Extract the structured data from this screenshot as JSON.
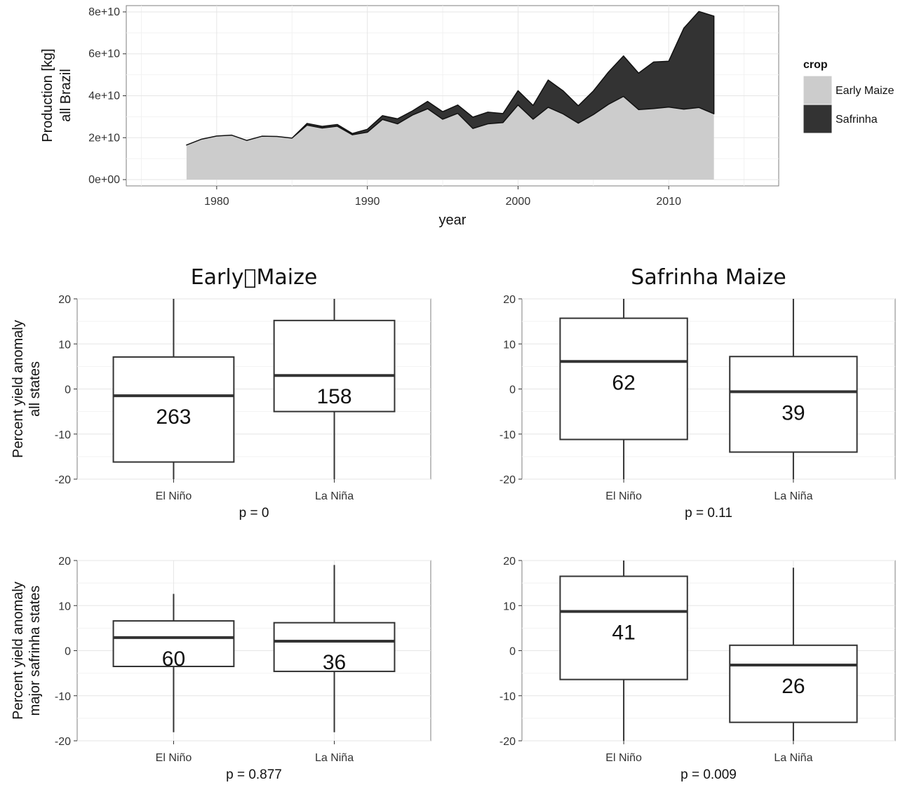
{
  "chart_data": [
    {
      "id": "production",
      "type": "area",
      "stacked": true,
      "xlabel": "year",
      "ylabel_lines": [
        "Production [kg]",
        "all Brazil"
      ],
      "xlim": [
        1974,
        2017.3
      ],
      "ylim": [
        -3000000000.0,
        83000000000.0
      ],
      "x_ticks": [
        1980,
        1990,
        2000,
        2010
      ],
      "x_tick_labels": [
        "1980",
        "1990",
        "2000",
        "2010"
      ],
      "y_ticks": [
        0,
        20000000000,
        40000000000,
        60000000000,
        80000000000
      ],
      "y_tick_labels": [
        "0e+00",
        "2e+10",
        "4e+10",
        "6e+10",
        "8e+10"
      ],
      "grid": true,
      "legend": {
        "title": "crop",
        "position": "right",
        "labels": [
          "Early Maize",
          "Safrinha"
        ]
      },
      "x": [
        1978,
        1979,
        1980,
        1981,
        1982,
        1983,
        1984,
        1985,
        1986,
        1987,
        1988,
        1989,
        1990,
        1991,
        1992,
        1993,
        1994,
        1995,
        1996,
        1997,
        1998,
        1999,
        2000,
        2001,
        2002,
        2003,
        2004,
        2005,
        2006,
        2007,
        2008,
        2009,
        2010,
        2011,
        2012,
        2013
      ],
      "series": [
        {
          "name": "Early Maize",
          "color": "#cccccc",
          "values": [
            16500000000.0,
            19300000000.0,
            20800000000.0,
            21200000000.0,
            18700000000.0,
            20700000000.0,
            20600000000.0,
            19800000000.0,
            26000000000.0,
            24600000000.0,
            25500000000.0,
            21400000000.0,
            22600000000.0,
            28700000000.0,
            26600000000.0,
            30800000000.0,
            33800000000.0,
            28800000000.0,
            31600000000.0,
            24400000000.0,
            26600000000.0,
            27200000000.0,
            35600000000.0,
            28800000000.0,
            34500000000.0,
            31300000000.0,
            26900000000.0,
            31000000000.0,
            35900000000.0,
            39700000000.0,
            33400000000.0,
            33900000000.0,
            34600000000.0,
            33600000000.0,
            34400000000.0,
            31400000000.0
          ]
        },
        {
          "name": "Safrinha",
          "color": "#333333",
          "values": [
            0,
            0,
            0,
            0,
            0,
            0,
            0,
            0,
            800000000.0,
            800000000.0,
            800000000.0,
            600000000.0,
            1400000000.0,
            1800000000.0,
            2400000000.0,
            2000000000.0,
            3500000000.0,
            3600000000.0,
            4000000000.0,
            5400000000.0,
            5600000000.0,
            4300000000.0,
            6800000000.0,
            6600000000.0,
            13000000000.0,
            11000000000.0,
            8300000000.0,
            11300000000.0,
            15400000000.0,
            19300000000.0,
            17400000000.0,
            22200000000.0,
            21900000000.0,
            38600000000.0,
            45800000000.0,
            46600000000.0
          ]
        }
      ]
    },
    {
      "id": "early-all",
      "type": "box",
      "title": "Early\u0000Maize",
      "ylabel_lines": [
        "Percent yield anomaly",
        "all states"
      ],
      "ylim": [
        -20,
        20
      ],
      "y_ticks": [
        -20,
        -10,
        0,
        10,
        20
      ],
      "y_tick_labels": [
        "-20",
        "-10",
        "0",
        "10",
        "20"
      ],
      "categories": [
        "El Niño",
        "La Niña"
      ],
      "p_label": "p = 0",
      "boxes": [
        {
          "category": "El Niño",
          "q1": -16.2,
          "median": -1.5,
          "q3": 7.1,
          "whisker_low": -20,
          "whisker_high": 20,
          "n_label": "263"
        },
        {
          "category": "La Niña",
          "q1": -5.0,
          "median": 3.0,
          "q3": 15.2,
          "whisker_low": -20,
          "whisker_high": 20,
          "n_label": "158"
        }
      ]
    },
    {
      "id": "safrinha-all",
      "type": "box",
      "title": "Safrinha Maize",
      "ylabel_lines": [],
      "ylim": [
        -20,
        20
      ],
      "y_ticks": [
        -20,
        -10,
        0,
        10,
        20
      ],
      "y_tick_labels": [
        "-20",
        "-10",
        "0",
        "10",
        "20"
      ],
      "categories": [
        "El Niño",
        "La Niña"
      ],
      "p_label": "p = 0.11",
      "boxes": [
        {
          "category": "El Niño",
          "q1": -11.2,
          "median": 6.1,
          "q3": 15.7,
          "whisker_low": -20,
          "whisker_high": 20,
          "n_label": "62"
        },
        {
          "category": "La Niña",
          "q1": -14.0,
          "median": -0.6,
          "q3": 7.2,
          "whisker_low": -20,
          "whisker_high": 20,
          "n_label": "39"
        }
      ]
    },
    {
      "id": "early-major",
      "type": "box",
      "title": "",
      "ylabel_lines": [
        "Percent yield anomaly",
        "major safrinha states"
      ],
      "ylim": [
        -20,
        20
      ],
      "y_ticks": [
        -20,
        -10,
        0,
        10,
        20
      ],
      "y_tick_labels": [
        "-20",
        "-10",
        "0",
        "10",
        "20"
      ],
      "categories": [
        "El Niño",
        "La Niña"
      ],
      "p_label": "p = 0.877",
      "boxes": [
        {
          "category": "El Niño",
          "q1": -3.5,
          "median": 2.9,
          "q3": 6.6,
          "whisker_low": -18.1,
          "whisker_high": 12.6,
          "n_label": "60"
        },
        {
          "category": "La Niña",
          "q1": -4.6,
          "median": 2.1,
          "q3": 6.2,
          "whisker_low": -18.1,
          "whisker_high": 19.0,
          "n_label": "36"
        }
      ]
    },
    {
      "id": "safrinha-major",
      "type": "box",
      "title": "",
      "ylabel_lines": [],
      "ylim": [
        -20,
        20
      ],
      "y_ticks": [
        -20,
        -10,
        0,
        10,
        20
      ],
      "y_tick_labels": [
        "-20",
        "-10",
        "0",
        "10",
        "20"
      ],
      "categories": [
        "El Niño",
        "La Niña"
      ],
      "p_label": "p = 0.009",
      "boxes": [
        {
          "category": "El Niño",
          "q1": -6.4,
          "median": 8.7,
          "q3": 16.5,
          "whisker_low": -20,
          "whisker_high": 20,
          "n_label": "41"
        },
        {
          "category": "La Niña",
          "q1": -15.9,
          "median": -3.2,
          "q3": 1.2,
          "whisker_low": -20,
          "whisker_high": 18.4,
          "n_label": "26"
        }
      ]
    }
  ]
}
